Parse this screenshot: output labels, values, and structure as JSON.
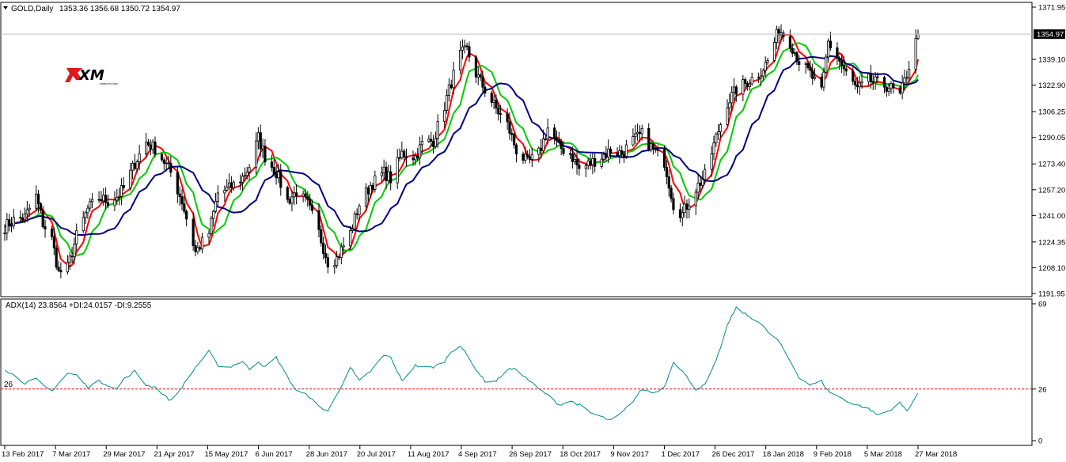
{
  "chart_data": [
    {
      "type": "candlestick",
      "symbol_label": "GOLD,Daily",
      "ohlc_label": "1353.36 1356.68 1350.72 1354.97",
      "last_price": 1354.97,
      "ylim": [
        1191.95,
        1371.95
      ],
      "yticks": [
        1371.95,
        1355.45,
        1339.1,
        1322.9,
        1306.25,
        1290.05,
        1273.4,
        1257.2,
        1241.0,
        1224.35,
        1208.1,
        1191.95
      ],
      "ytick_labels": [
        "1371.95",
        "1339.10",
        "1322.90",
        "1306.25",
        "1290.05",
        "1273.40",
        "1257.20",
        "1241.00",
        "1224.35",
        "1208.10",
        "1191.95"
      ],
      "current_price_label": "1354.97",
      "x_date_labels": [
        "13 Feb 2017",
        "7 Mar 2017",
        "29 Mar 2017",
        "21 Apr 2017",
        "15 May 2017",
        "6 Jun 2017",
        "28 Jun 2017",
        "20 Jul 2017",
        "11 Aug 2017",
        "4 Sep 2017",
        "26 Sep 2017",
        "18 Oct 2017",
        "9 Nov 2017",
        "1 Dec 2017",
        "26 Dec 2017",
        "18 Jan 2018",
        "9 Feb 2018",
        "5 Mar 2018",
        "27 Mar 2018"
      ],
      "price_path": [
        [
          "2017-02-13",
          1234
        ],
        [
          "2017-02-17",
          1238
        ],
        [
          "2017-02-22",
          1240
        ],
        [
          "2017-02-27",
          1253
        ],
        [
          "2017-03-02",
          1236
        ],
        [
          "2017-03-06",
          1226
        ],
        [
          "2017-03-09",
          1205
        ],
        [
          "2017-03-13",
          1208
        ],
        [
          "2017-03-17",
          1228
        ],
        [
          "2017-03-22",
          1245
        ],
        [
          "2017-03-27",
          1252
        ],
        [
          "2017-03-31",
          1250
        ],
        [
          "2017-04-04",
          1253
        ],
        [
          "2017-04-07",
          1258
        ],
        [
          "2017-04-12",
          1274
        ],
        [
          "2017-04-17",
          1287
        ],
        [
          "2017-04-21",
          1283
        ],
        [
          "2017-04-25",
          1275
        ],
        [
          "2017-04-28",
          1268
        ],
        [
          "2017-05-03",
          1250
        ],
        [
          "2017-05-09",
          1218
        ],
        [
          "2017-05-15",
          1230
        ],
        [
          "2017-05-19",
          1255
        ],
        [
          "2017-05-24",
          1258
        ],
        [
          "2017-05-30",
          1265
        ],
        [
          "2017-06-02",
          1272
        ],
        [
          "2017-06-06",
          1290
        ],
        [
          "2017-06-09",
          1278
        ],
        [
          "2017-06-14",
          1268
        ],
        [
          "2017-06-19",
          1250
        ],
        [
          "2017-06-23",
          1256
        ],
        [
          "2017-06-28",
          1248
        ],
        [
          "2017-07-03",
          1230
        ],
        [
          "2017-07-07",
          1212
        ],
        [
          "2017-07-11",
          1214
        ],
        [
          "2017-07-17",
          1230
        ],
        [
          "2017-07-21",
          1248
        ],
        [
          "2017-07-26",
          1260
        ],
        [
          "2017-08-01",
          1268
        ],
        [
          "2017-08-04",
          1264
        ],
        [
          "2017-08-09",
          1280
        ],
        [
          "2017-08-15",
          1278
        ],
        [
          "2017-08-18",
          1286
        ],
        [
          "2017-08-23",
          1288
        ],
        [
          "2017-08-28",
          1310
        ],
        [
          "2017-08-31",
          1325
        ],
        [
          "2017-09-04",
          1342
        ],
        [
          "2017-09-07",
          1345
        ],
        [
          "2017-09-11",
          1330
        ],
        [
          "2017-09-15",
          1320
        ],
        [
          "2017-09-20",
          1308
        ],
        [
          "2017-09-25",
          1298
        ],
        [
          "2017-09-29",
          1282
        ],
        [
          "2017-10-04",
          1274
        ],
        [
          "2017-10-09",
          1280
        ],
        [
          "2017-10-13",
          1296
        ],
        [
          "2017-10-18",
          1284
        ],
        [
          "2017-10-23",
          1280
        ],
        [
          "2017-10-27",
          1270
        ],
        [
          "2017-11-01",
          1274
        ],
        [
          "2017-11-06",
          1278
        ],
        [
          "2017-11-10",
          1282
        ],
        [
          "2017-11-15",
          1280
        ],
        [
          "2017-11-20",
          1288
        ],
        [
          "2017-11-24",
          1292
        ],
        [
          "2017-11-29",
          1282
        ],
        [
          "2017-12-04",
          1275
        ],
        [
          "2017-12-08",
          1248
        ],
        [
          "2017-12-12",
          1242
        ],
        [
          "2017-12-18",
          1258
        ],
        [
          "2017-12-22",
          1266
        ],
        [
          "2017-12-27",
          1290
        ],
        [
          "2018-01-01",
          1312
        ],
        [
          "2018-01-05",
          1320
        ],
        [
          "2018-01-10",
          1325
        ],
        [
          "2018-01-15",
          1330
        ],
        [
          "2018-01-19",
          1338
        ],
        [
          "2018-01-24",
          1358
        ],
        [
          "2018-01-29",
          1350
        ],
        [
          "2018-02-02",
          1338
        ],
        [
          "2018-02-07",
          1330
        ],
        [
          "2018-02-12",
          1318
        ],
        [
          "2018-02-15",
          1350
        ],
        [
          "2018-02-20",
          1338
        ],
        [
          "2018-02-23",
          1330
        ],
        [
          "2018-02-28",
          1320
        ],
        [
          "2018-03-05",
          1326
        ],
        [
          "2018-03-09",
          1324
        ],
        [
          "2018-03-14",
          1322
        ],
        [
          "2018-03-19",
          1316
        ],
        [
          "2018-03-22",
          1330
        ],
        [
          "2018-03-27",
          1355
        ]
      ],
      "moving_averages": [
        {
          "color": "#ff0000",
          "style": "fast"
        },
        {
          "color": "#00cc00",
          "style": "medium"
        },
        {
          "color": "#000080",
          "style": "slow"
        }
      ],
      "colors": {
        "candle": "#000000",
        "grid": "#c0c0c0",
        "price_line": "#c0c0c0"
      }
    },
    {
      "type": "line",
      "label": "ADX(14) 23.8564 +DI:24.0157 -DI:9.2555",
      "ylim": [
        0,
        69
      ],
      "ytick_labels": [
        "69",
        "26",
        "0"
      ],
      "level": 26,
      "level_label": "26",
      "adx_path": [
        [
          "2017-02-13",
          36
        ],
        [
          "2017-02-17",
          33
        ],
        [
          "2017-02-22",
          29
        ],
        [
          "2017-02-27",
          31
        ],
        [
          "2017-03-02",
          28
        ],
        [
          "2017-03-06",
          25
        ],
        [
          "2017-03-13",
          34
        ],
        [
          "2017-03-17",
          33
        ],
        [
          "2017-03-22",
          27
        ],
        [
          "2017-03-27",
          30
        ],
        [
          "2017-03-31",
          28
        ],
        [
          "2017-04-04",
          26
        ],
        [
          "2017-04-07",
          31
        ],
        [
          "2017-04-12",
          35
        ],
        [
          "2017-04-17",
          28
        ],
        [
          "2017-04-21",
          27
        ],
        [
          "2017-04-28",
          20
        ],
        [
          "2017-05-03",
          27
        ],
        [
          "2017-05-09",
          37
        ],
        [
          "2017-05-15",
          45
        ],
        [
          "2017-05-19",
          38
        ],
        [
          "2017-05-24",
          37
        ],
        [
          "2017-05-30",
          40
        ],
        [
          "2017-06-02",
          36
        ],
        [
          "2017-06-06",
          40
        ],
        [
          "2017-06-09",
          37
        ],
        [
          "2017-06-14",
          42
        ],
        [
          "2017-06-19",
          32
        ],
        [
          "2017-06-23",
          25
        ],
        [
          "2017-06-28",
          23
        ],
        [
          "2017-07-03",
          17
        ],
        [
          "2017-07-07",
          15
        ],
        [
          "2017-07-11",
          23
        ],
        [
          "2017-07-17",
          37
        ],
        [
          "2017-07-21",
          30
        ],
        [
          "2017-07-26",
          35
        ],
        [
          "2017-08-01",
          43
        ],
        [
          "2017-08-04",
          42
        ],
        [
          "2017-08-09",
          30
        ],
        [
          "2017-08-15",
          38
        ],
        [
          "2017-08-18",
          37
        ],
        [
          "2017-08-23",
          37
        ],
        [
          "2017-08-28",
          40
        ],
        [
          "2017-08-31",
          45
        ],
        [
          "2017-09-04",
          48
        ],
        [
          "2017-09-07",
          43
        ],
        [
          "2017-09-11",
          36
        ],
        [
          "2017-09-15",
          30
        ],
        [
          "2017-09-20",
          30
        ],
        [
          "2017-09-25",
          36
        ],
        [
          "2017-09-29",
          36
        ],
        [
          "2017-10-04",
          31
        ],
        [
          "2017-10-09",
          26
        ],
        [
          "2017-10-13",
          23
        ],
        [
          "2017-10-18",
          18
        ],
        [
          "2017-10-23",
          20
        ],
        [
          "2017-10-27",
          18
        ],
        [
          "2017-11-01",
          14
        ],
        [
          "2017-11-06",
          12
        ],
        [
          "2017-11-10",
          10
        ],
        [
          "2017-11-15",
          14
        ],
        [
          "2017-11-20",
          20
        ],
        [
          "2017-11-24",
          26
        ],
        [
          "2017-11-29",
          24
        ],
        [
          "2017-12-04",
          27
        ],
        [
          "2017-12-08",
          40
        ],
        [
          "2017-12-12",
          35
        ],
        [
          "2017-12-18",
          26
        ],
        [
          "2017-12-22",
          28
        ],
        [
          "2017-12-27",
          40
        ],
        [
          "2018-01-01",
          58
        ],
        [
          "2018-01-05",
          67
        ],
        [
          "2018-01-10",
          63
        ],
        [
          "2018-01-15",
          60
        ],
        [
          "2018-01-19",
          55
        ],
        [
          "2018-01-24",
          50
        ],
        [
          "2018-01-29",
          40
        ],
        [
          "2018-02-02",
          32
        ],
        [
          "2018-02-07",
          28
        ],
        [
          "2018-02-12",
          30
        ],
        [
          "2018-02-15",
          25
        ],
        [
          "2018-02-20",
          22
        ],
        [
          "2018-02-23",
          20
        ],
        [
          "2018-02-28",
          18
        ],
        [
          "2018-03-05",
          16
        ],
        [
          "2018-03-09",
          13
        ],
        [
          "2018-03-14",
          15
        ],
        [
          "2018-03-19",
          19
        ],
        [
          "2018-03-22",
          15
        ],
        [
          "2018-03-27",
          24
        ]
      ],
      "colors": {
        "adx": "#008b8b",
        "level": "#ff0000"
      }
    }
  ],
  "logo": {
    "text": "XM",
    "subtext": "www.xm.com"
  }
}
